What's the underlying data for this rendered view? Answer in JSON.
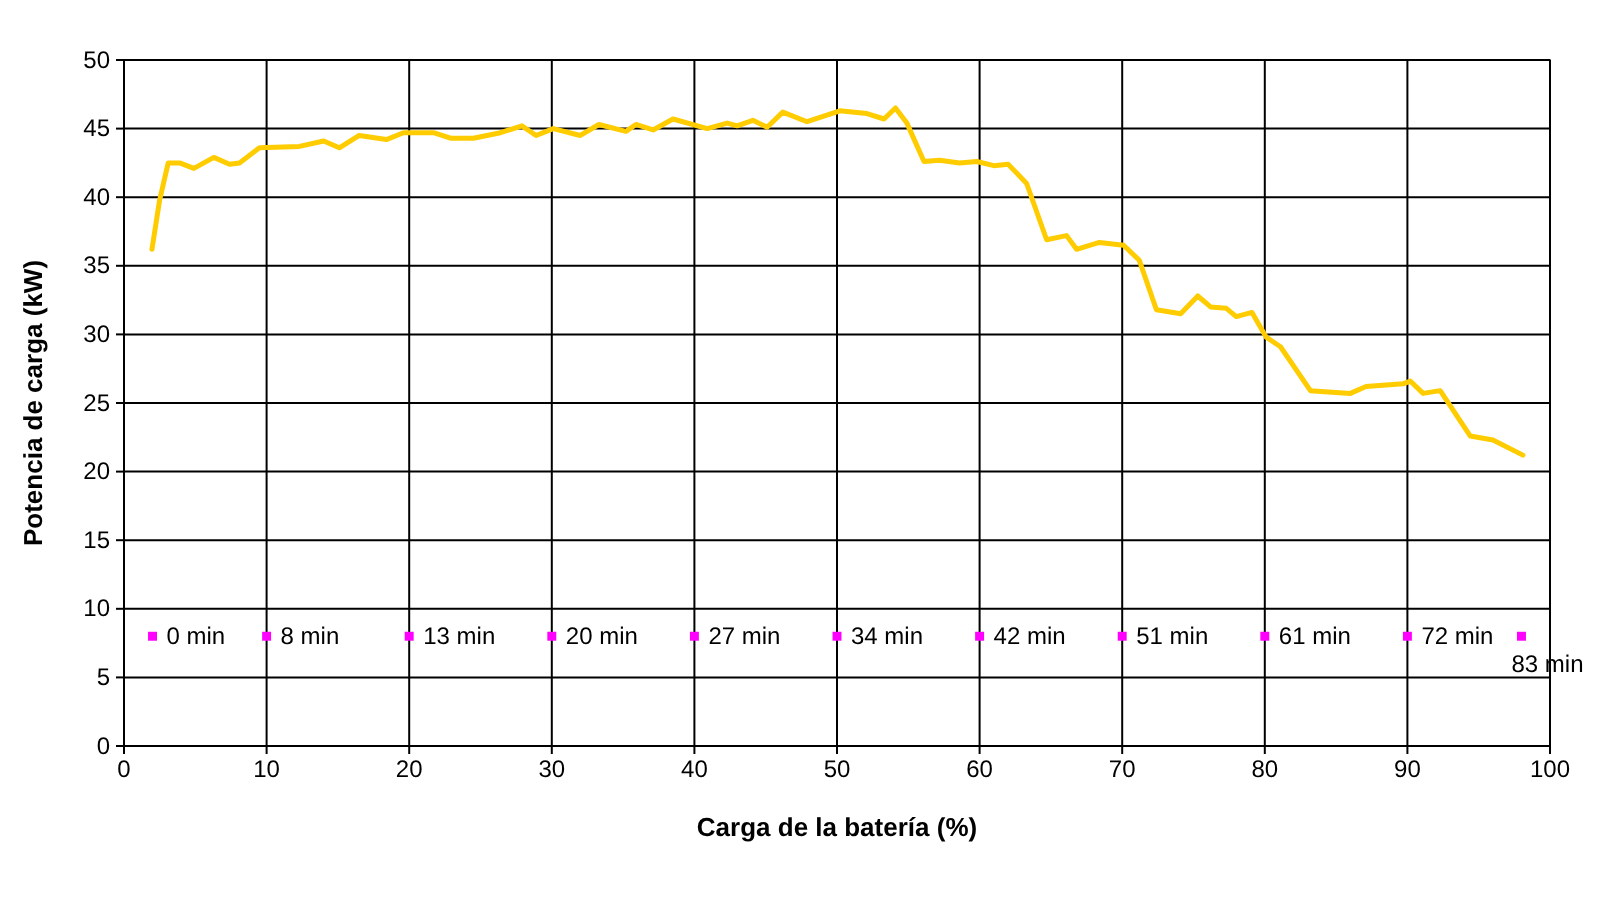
{
  "chart_data": {
    "type": "line",
    "xlabel": "Carga de la batería (%)",
    "ylabel": "Potencia de carga (kW)",
    "xlim": [
      0,
      100
    ],
    "xticks": [
      0,
      10,
      20,
      30,
      40,
      50,
      60,
      70,
      80,
      90,
      100
    ],
    "ylim": [
      0,
      50
    ],
    "yticks": [
      0,
      5,
      10,
      15,
      20,
      25,
      30,
      35,
      40,
      45,
      50
    ],
    "grid": true,
    "annotations": [
      {
        "text": "0 min",
        "x": 2,
        "y": 8
      },
      {
        "text": "8 min",
        "x": 10,
        "y": 8
      },
      {
        "text": "13 min",
        "x": 20,
        "y": 8
      },
      {
        "text": "20 min",
        "x": 30,
        "y": 8
      },
      {
        "text": "27 min",
        "x": 40,
        "y": 8
      },
      {
        "text": "34 min",
        "x": 50,
        "y": 8
      },
      {
        "text": "42 min",
        "x": 60,
        "y": 8
      },
      {
        "text": "51 min",
        "x": 70,
        "y": 8
      },
      {
        "text": "61 min",
        "x": 80,
        "y": 8
      },
      {
        "text": "72 min",
        "x": 90,
        "y": 8
      },
      {
        "text": "83 min",
        "x": 98,
        "y": 8
      }
    ],
    "series": [
      {
        "color": "#ffcc00",
        "marker": "none",
        "x": [
          1.96,
          2.5,
          3.1,
          3.9,
          4.9,
          6.3,
          7.4,
          8.1,
          9.5,
          12.3,
          14.0,
          15.1,
          16.5,
          18.4,
          19.6,
          21.7,
          22.9,
          24.5,
          26.4,
          27.9,
          28.9,
          30.1,
          32.0,
          33.3,
          35.2,
          35.9,
          37.1,
          38.5,
          40.9,
          42.3,
          43.0,
          44.1,
          45.1,
          46.2,
          47.9,
          50.2,
          52.1,
          53.3,
          54.1,
          54.9,
          56.1,
          57.2,
          58.6,
          59.8,
          61.0,
          62.0,
          63.3,
          64.7,
          66.1,
          66.8,
          68.4,
          70.1,
          71.2,
          72.4,
          74.1,
          75.3,
          76.2,
          77.3,
          78.0,
          79.1,
          80.1,
          81.1,
          83.2,
          86.0,
          87.1,
          89.7,
          90.2,
          91.1,
          92.3,
          94.4,
          96.0,
          98.1
        ],
        "values": [
          36.2,
          39.8,
          42.5,
          42.5,
          42.1,
          42.9,
          42.4,
          42.5,
          43.6,
          43.7,
          44.1,
          43.6,
          44.5,
          44.2,
          44.7,
          44.7,
          44.3,
          44.3,
          44.7,
          45.2,
          44.5,
          45.0,
          44.5,
          45.3,
          44.8,
          45.3,
          44.9,
          45.7,
          45.0,
          45.4,
          45.2,
          45.6,
          45.1,
          46.2,
          45.5,
          46.3,
          46.1,
          45.7,
          46.5,
          45.4,
          42.6,
          42.7,
          42.5,
          42.6,
          42.3,
          42.4,
          41.0,
          36.9,
          37.2,
          36.2,
          36.7,
          36.5,
          35.4,
          31.8,
          31.5,
          32.8,
          32.0,
          31.9,
          31.3,
          31.6,
          29.8,
          29.1,
          25.9,
          25.7,
          26.2,
          26.4,
          26.6,
          25.7,
          25.9,
          22.6,
          22.3,
          21.2
        ]
      },
      {
        "type": "scatter",
        "color": "#ff00ff",
        "marker": "square",
        "x": [
          2,
          10,
          20,
          30,
          40,
          50,
          60,
          70,
          80,
          90,
          98
        ],
        "values": [
          8,
          8,
          8,
          8,
          8,
          8,
          8,
          8,
          8,
          8,
          8
        ]
      }
    ]
  }
}
